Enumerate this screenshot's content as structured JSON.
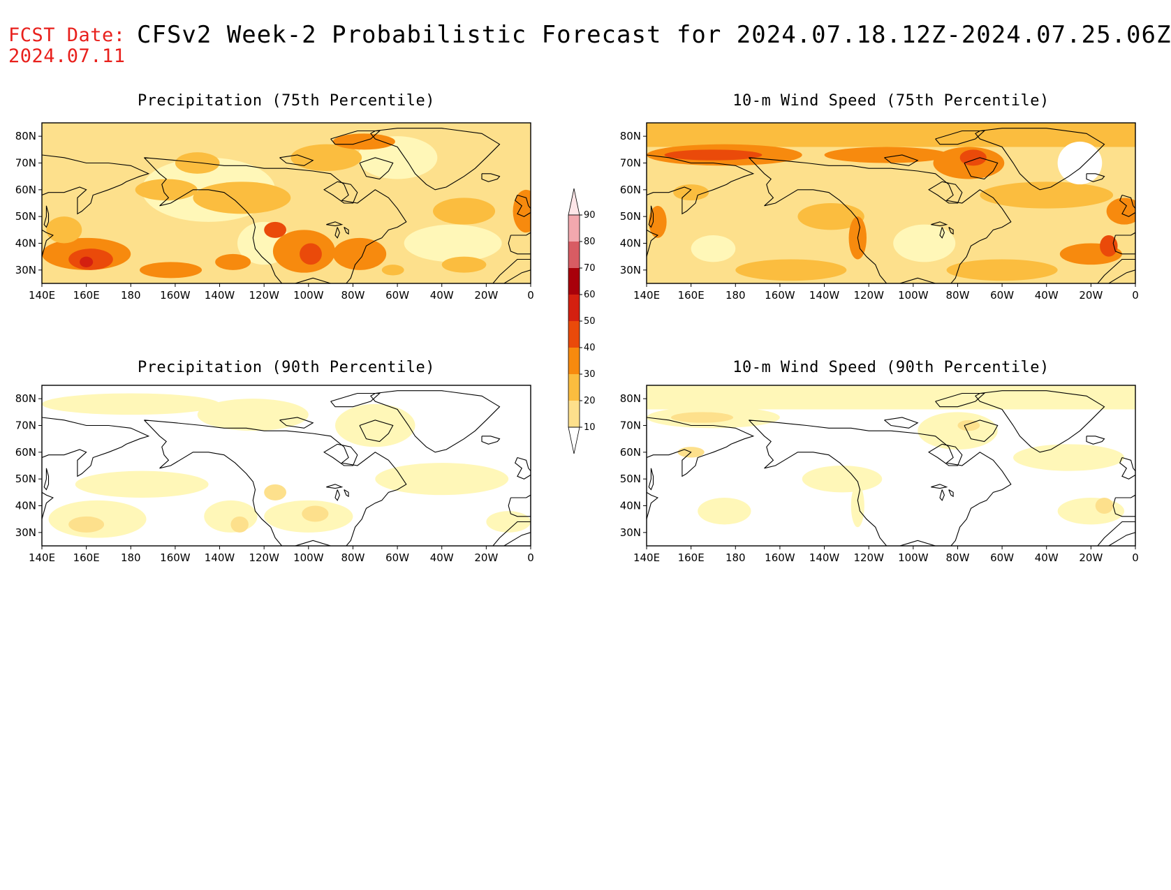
{
  "header": {
    "fcst_label": "FCST Date:",
    "fcst_date": "2024.07.11",
    "title": "CFSv2 Week-2 Probabilistic Forecast for 2024.07.18.12Z-2024.07.25.06Z"
  },
  "panels": [
    {
      "id": "precip75",
      "title": "Precipitation (75th Percentile)"
    },
    {
      "id": "wind75",
      "title": "10-m Wind Speed (75th Percentile)"
    },
    {
      "id": "precip90",
      "title": "Precipitation (90th Percentile)"
    },
    {
      "id": "wind90",
      "title": "10-m Wind Speed (90th Percentile)"
    }
  ],
  "axes": {
    "lat_labels": [
      "80N",
      "70N",
      "60N",
      "50N",
      "40N",
      "30N"
    ],
    "lat_values": [
      80,
      70,
      60,
      50,
      40,
      30
    ],
    "lon_labels": [
      "140E",
      "160E",
      "180",
      "160W",
      "140W",
      "120W",
      "100W",
      "80W",
      "60W",
      "40W",
      "20W",
      "0"
    ],
    "lon_range": [
      140,
      360
    ],
    "lat_range": [
      25,
      85
    ]
  },
  "colorbar": {
    "levels": [
      "10",
      "20",
      "30",
      "40",
      "50",
      "60",
      "70",
      "80",
      "90"
    ],
    "colors": [
      "#fff7b8",
      "#fde08c",
      "#fbbd3f",
      "#f78a0e",
      "#ea4a0a",
      "#d42010",
      "#a8000a",
      "#d85c63",
      "#f2a8ae",
      "#fde6e8"
    ]
  }
}
